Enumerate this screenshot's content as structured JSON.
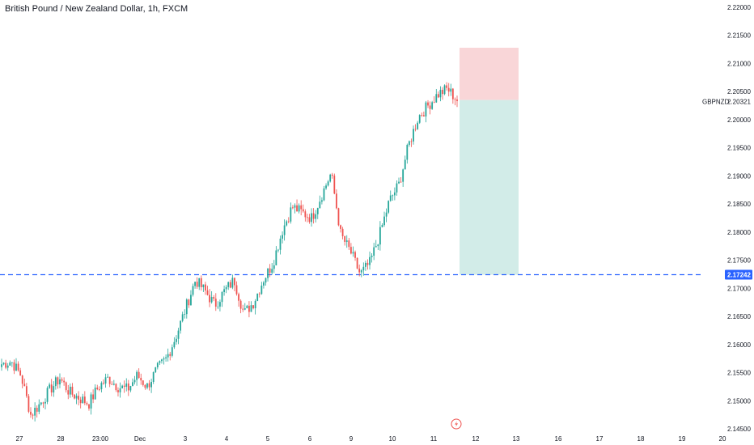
{
  "title": "British Pound / New Zealand Dollar, 1h, FXCM",
  "symbol_label": "GBPNZD",
  "symbol_price": "2.20321",
  "line_price_label": "2.17242",
  "colors": {
    "up": "#26a69a",
    "down": "#ef5350",
    "line": "#2962ff",
    "risk": "#f9d6d8",
    "reward": "#d2ece8",
    "tag": "#2962ff",
    "text": "#131722"
  },
  "chart_data": {
    "type": "candlestick",
    "symbol": "GBPNZD",
    "interval": "1h",
    "source": "FXCM",
    "y_axis": {
      "min": 2.145,
      "max": 2.222,
      "ticks": [
        "2.14500",
        "2.15000",
        "2.15500",
        "2.16000",
        "2.16500",
        "2.17000",
        "2.17500",
        "2.18000",
        "2.18500",
        "2.19000",
        "2.19500",
        "2.20000",
        "2.20500",
        "2.21000",
        "2.21500",
        "2.22000"
      ]
    },
    "x_ticks": [
      "27",
      "28",
      "23:00",
      "Dec",
      "3",
      "4",
      "5",
      "6",
      "9",
      "10",
      "11",
      "12",
      "13",
      "16",
      "17",
      "18",
      "19",
      "20"
    ],
    "horizontal_line": 2.17242,
    "last_price": 2.20321,
    "position": {
      "entry": 2.2035,
      "stop": 2.2128,
      "target": 2.17242,
      "from_label": "11",
      "to_label": "13"
    },
    "price_path": [
      [
        "27",
        2.1565
      ],
      [
        "27",
        2.157
      ],
      [
        "27",
        2.1545
      ],
      [
        "28",
        2.1475
      ],
      [
        "28",
        2.1495
      ],
      [
        "28",
        2.152
      ],
      [
        "23:00",
        2.154
      ],
      [
        "23:00",
        2.1515
      ],
      [
        "23:00",
        2.1505
      ],
      [
        "Dec",
        2.1495
      ],
      [
        "Dec",
        2.1525
      ],
      [
        "Dec",
        2.154
      ],
      [
        "3",
        2.1525
      ],
      [
        "3",
        2.152
      ],
      [
        "3",
        2.1545
      ],
      [
        "4",
        2.1525
      ],
      [
        "4",
        2.1555
      ],
      [
        "4",
        2.1575
      ],
      [
        "4",
        2.1615
      ],
      [
        "4",
        2.1665
      ],
      [
        "4",
        2.1715
      ],
      [
        "5",
        2.1695
      ],
      [
        "5",
        2.167
      ],
      [
        "5",
        2.1695
      ],
      [
        "5",
        2.1715
      ],
      [
        "5",
        2.1655
      ],
      [
        "6",
        2.1675
      ],
      [
        "6",
        2.1715
      ],
      [
        "6",
        2.1745
      ],
      [
        "6",
        2.1805
      ],
      [
        "6",
        2.1845
      ],
      [
        "9",
        2.1835
      ],
      [
        "9",
        2.1825
      ],
      [
        "9",
        2.1865
      ],
      [
        "9",
        2.1905
      ],
      [
        "9",
        2.1795
      ],
      [
        "9",
        2.1765
      ],
      [
        "10",
        2.1725
      ],
      [
        "10",
        2.1745
      ],
      [
        "10",
        2.1795
      ],
      [
        "10",
        2.1855
      ],
      [
        "10",
        2.1885
      ],
      [
        "11",
        2.1955
      ],
      [
        "11",
        2.2005
      ],
      [
        "11",
        2.2025
      ],
      [
        "11",
        2.2045
      ],
      [
        "11",
        2.2055
      ],
      [
        "11",
        2.2035
      ]
    ]
  }
}
